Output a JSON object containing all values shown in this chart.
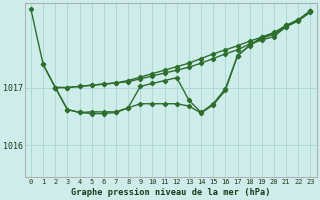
{
  "title": "Graphe pression niveau de la mer (hPa)",
  "bg_color": "#ceecea",
  "grid_color": "#b0d8d4",
  "line_color": "#2d6e2d",
  "xlim": [
    -0.5,
    23.5
  ],
  "ylim": [
    1015.45,
    1018.45
  ],
  "yticks": [
    1016,
    1017
  ],
  "xtick_labels": [
    "0",
    "1",
    "2",
    "3",
    "4",
    "5",
    "6",
    "7",
    "8",
    "9",
    "10",
    "11",
    "12",
    "13",
    "14",
    "15",
    "16",
    "17",
    "18",
    "19",
    "20",
    "21",
    "22",
    "23"
  ],
  "series1": [
    1018.35,
    1017.4,
    1017.0,
    1017.0,
    1017.02,
    1017.04,
    1017.06,
    1017.08,
    1017.1,
    1017.15,
    1017.2,
    1017.25,
    1017.3,
    1017.35,
    1017.42,
    1017.5,
    1017.58,
    1017.65,
    1017.75,
    1017.82,
    1017.88,
    1018.05,
    1018.15,
    1018.3
  ],
  "series2": [
    null,
    null,
    1017.0,
    1017.0,
    1017.02,
    1017.04,
    1017.06,
    1017.08,
    1017.12,
    1017.18,
    1017.24,
    1017.3,
    1017.36,
    1017.42,
    1017.5,
    1017.58,
    1017.65,
    1017.72,
    1017.8,
    1017.87,
    1017.93,
    1018.07,
    1018.17,
    1018.32
  ],
  "series3": [
    null,
    1017.4,
    1017.0,
    1016.62,
    1016.57,
    1016.58,
    1016.58,
    1016.58,
    1016.65,
    1017.02,
    1017.07,
    1017.12,
    1017.17,
    1016.78,
    1016.57,
    1016.72,
    1016.98,
    1017.55,
    1017.72,
    1017.85,
    1017.92,
    1018.05,
    1018.16,
    1018.32
  ],
  "series4": [
    null,
    null,
    1017.0,
    1016.62,
    1016.57,
    1016.55,
    1016.55,
    1016.57,
    1016.65,
    1016.72,
    1016.72,
    1016.72,
    1016.72,
    1016.68,
    1016.56,
    1016.7,
    1016.95,
    1017.55,
    1017.73,
    1017.87,
    1017.95,
    1018.07,
    1018.17,
    1018.32
  ]
}
